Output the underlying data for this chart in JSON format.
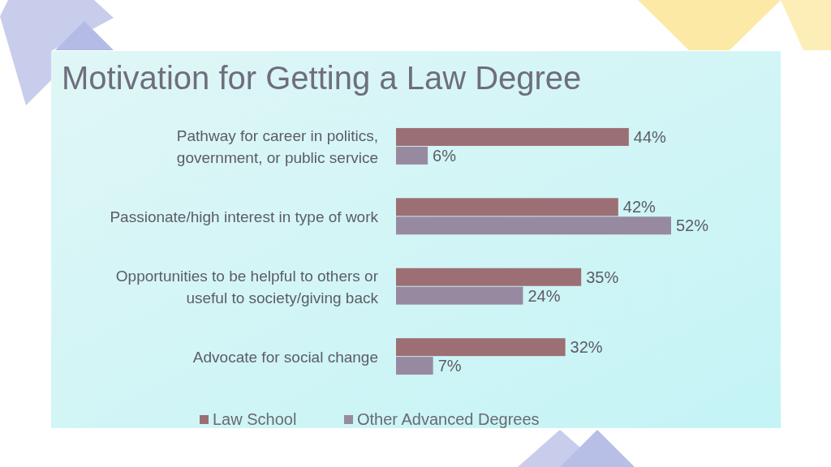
{
  "chart_data": {
    "type": "bar",
    "orientation": "horizontal",
    "title": "Motivation for Getting a Law Degree",
    "categories": [
      "Pathway for career in politics, government, or public service",
      "Passionate/high interest in type of work",
      "Opportunities to be helpful to others or useful to society/giving back",
      "Advocate for social change"
    ],
    "series": [
      {
        "name": "Law School",
        "color": "#9c6f74",
        "values": [
          44,
          42,
          35,
          32
        ],
        "value_labels": [
          "44%",
          "42%",
          "35%",
          "32%"
        ]
      },
      {
        "name": "Other Advanced Degrees",
        "color": "#978aa0",
        "values": [
          6,
          52,
          24,
          7
        ],
        "value_labels": [
          "6%",
          "52%",
          "24%",
          "7%"
        ]
      }
    ],
    "legend": "bottom"
  }
}
